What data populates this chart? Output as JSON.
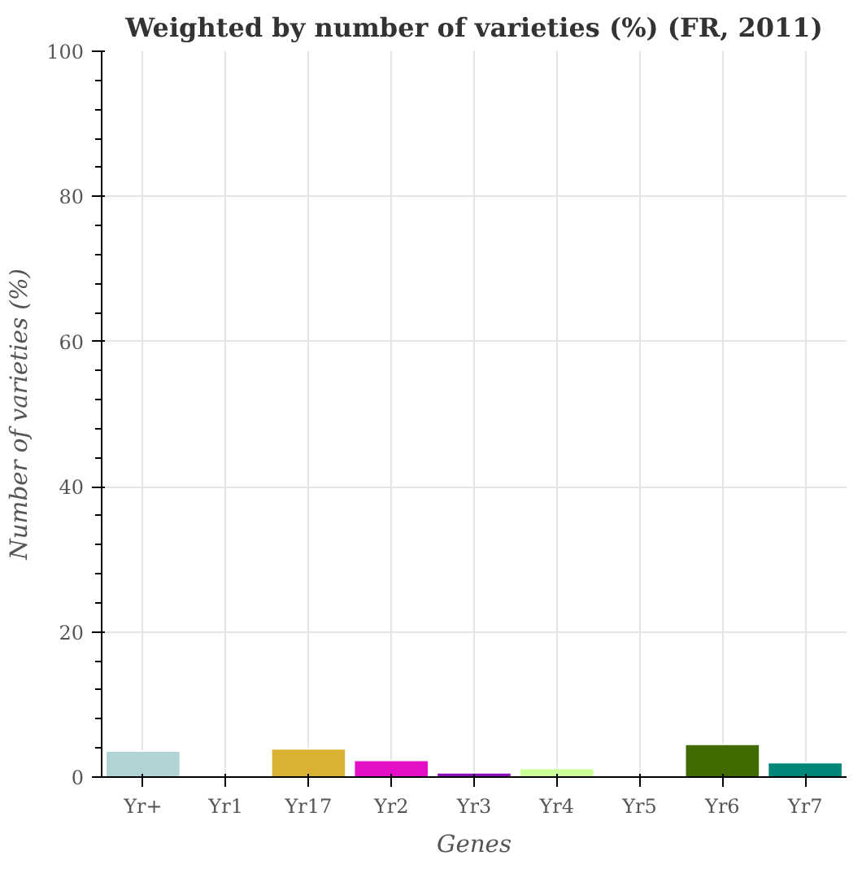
{
  "chart_data": {
    "type": "bar",
    "title": "Weighted by number of varieties (%) (FR, 2011)",
    "xlabel": "Genes",
    "ylabel": "Number of varieties (%)",
    "categories": [
      "Yr+",
      "Yr1",
      "Yr17",
      "Yr2",
      "Yr3",
      "Yr4",
      "Yr5",
      "Yr6",
      "Yr7"
    ],
    "values": [
      3.6,
      0,
      3.9,
      2.3,
      0.6,
      1.2,
      0,
      4.5,
      2.0
    ],
    "colors": [
      "#b0d4d6",
      "#ffffff",
      "#dab233",
      "#e60fc8",
      "#8a0fb8",
      "#ccff99",
      "#ffffff",
      "#416b00",
      "#00877a"
    ],
    "ylim": [
      0,
      100
    ],
    "yticks": [
      0,
      20,
      40,
      60,
      80,
      100
    ],
    "grid": true
  }
}
